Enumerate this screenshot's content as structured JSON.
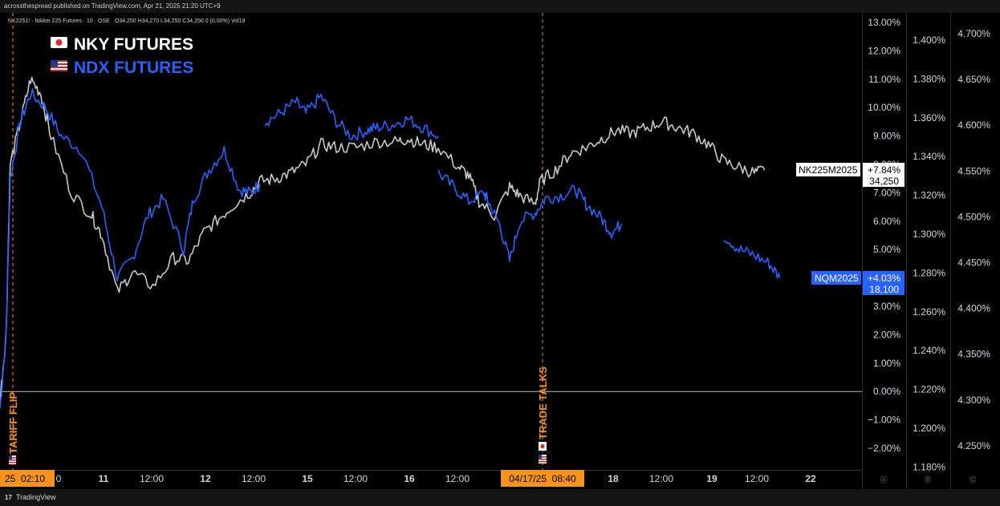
{
  "header": {
    "published": "acrossthespread published on TradingView.com, Apr 21, 2025 21:20 UTC+9",
    "symbol_info": "NK2251! · Nikkei 225 Futures · 10 · OSE",
    "ohlc": "O34,250  H34,270  L34,250  C34,250  0 (0.00%)  Vol19"
  },
  "legend": [
    {
      "flag": "japan-flag-icon",
      "label": "NKY  FUTURES",
      "color": "#ffffff"
    },
    {
      "flag": "us-flag-icon",
      "label": "NDX  FUTURES",
      "color": "#2962ff"
    }
  ],
  "events": [
    {
      "label": "TARIFF FLIP",
      "flag": "us-flag-icon",
      "time_label": "25  02:10"
    },
    {
      "label": "TRADE TALKS",
      "flag": "japan-flag-icon",
      "time_label": "04/17/25  08:40"
    }
  ],
  "footer": {
    "brand": "TradingView"
  },
  "colors": {
    "nky": "#c8c8c8",
    "ndx": "#2962ff",
    "event_line": "#f7931a",
    "time_badge": "#f7931a",
    "ndx_tag": "#2962ff",
    "nky_tag": "#ffffff"
  },
  "chart_data": {
    "type": "line",
    "x_ticks": [
      "11",
      "12:00",
      "12",
      "12:00",
      "15",
      "12:00",
      "16",
      "12:00",
      "17",
      "12:00",
      "18",
      "12:00",
      "19",
      "12:00",
      "22"
    ],
    "x_tick_partial": "0",
    "y_axes": [
      {
        "id": "A",
        "labels": [
          "13.00%",
          "12.00%",
          "11.00%",
          "10.00%",
          "9.00%",
          "8.00%",
          "7.00%",
          "6.00%",
          "5.00%",
          "4.00%",
          "3.00%",
          "2.00%",
          "1.00%",
          "0.00%",
          "−1.00%",
          "−2.00%"
        ],
        "ylim": [
          -2.6,
          13.5
        ]
      },
      {
        "id": "B",
        "labels": [
          "1.400%",
          "1.380%",
          "1.360%",
          "1.340%",
          "1.320%",
          "1.300%",
          "1.280%",
          "1.260%",
          "1.240%",
          "1.220%",
          "1.200%",
          "1.180%"
        ]
      },
      {
        "id": "C",
        "labels": [
          "4.700%",
          "4.650%",
          "4.600%",
          "4.550%",
          "4.500%",
          "4.450%",
          "4.400%",
          "4.350%",
          "4.300%",
          "4.250%"
        ]
      }
    ],
    "grid": false,
    "series": [
      {
        "name": "NK225M2025",
        "pct": "+7.84%",
        "price": "34,250",
        "segments": [
          {
            "x": [
              0,
              0.06,
              0.1,
              0.2,
              0.3,
              0.4,
              0.5,
              0.7,
              0.9,
              1.0,
              1.15,
              1.3,
              1.5,
              1.7,
              1.85,
              2.0,
              2.15,
              2.3,
              2.45,
              2.55,
              2.7,
              2.85,
              3.0,
              3.15,
              3.3,
              3.5,
              3.7,
              3.9,
              4.0,
              4.15,
              4.3,
              4.5,
              4.6,
              4.7,
              4.85,
              5.0,
              5.1,
              5.25,
              5.3,
              5.45,
              5.6,
              5.75,
              5.9,
              6.05,
              6.2,
              6.35,
              6.5,
              6.65,
              6.8,
              6.95,
              7.1,
              7.25,
              7.4,
              7.5
            ],
            "y": [
              -0.3,
              2.0,
              8.0,
              9.5,
              11.0,
              10.5,
              9.0,
              7.0,
              6.2,
              5.5,
              3.5,
              4.2,
              3.7,
              4.7,
              4.6,
              5.6,
              6.1,
              6.6,
              7.0,
              7.4,
              7.5,
              7.7,
              8.0,
              8.7,
              8.6,
              8.6,
              8.8,
              8.8,
              8.9,
              8.7,
              8.6,
              7.9,
              7.6,
              6.7,
              6.2,
              7.2,
              6.9,
              6.6,
              7.4,
              7.8,
              8.4,
              8.6,
              8.9,
              9.2,
              9.1,
              9.3,
              9.5,
              9.3,
              9.1,
              8.7,
              8.1,
              7.9,
              7.7,
              7.8
            ]
          }
        ]
      },
      {
        "name": "NQM2025",
        "pct": "+4.03%",
        "price": "18,100",
        "segments": [
          {
            "x": [
              0,
              0.06,
              0.1,
              0.2,
              0.3,
              0.45,
              0.6,
              0.8,
              1.0,
              1.15,
              1.3,
              1.45,
              1.6,
              1.8,
              1.9,
              2.05,
              2.2,
              2.35,
              2.45,
              2.55
            ],
            "y": [
              -0.6,
              2.0,
              7.5,
              9.5,
              10.5,
              10.0,
              9.0,
              8.5,
              6.5,
              4.0,
              4.7,
              6.2,
              6.8,
              5.0,
              6.8,
              7.8,
              8.5,
              7.1,
              7.0,
              7.3
            ]
          },
          {
            "x": [
              2.6,
              2.75,
              2.9,
              3.0,
              3.15,
              3.3,
              3.45,
              3.6,
              3.7,
              3.85,
              4.0,
              4.15,
              4.3
            ],
            "y": [
              9.5,
              9.8,
              10.2,
              9.8,
              10.4,
              9.5,
              9.0,
              9.2,
              9.3,
              9.4,
              9.6,
              9.3,
              9.0
            ]
          },
          {
            "x": [
              4.3,
              4.45,
              4.6,
              4.75,
              4.8,
              4.9,
              5.0,
              5.1,
              5.25,
              5.35,
              5.5,
              5.65,
              5.75,
              5.9,
              6.0,
              6.1
            ],
            "y": [
              7.7,
              7.2,
              6.7,
              7.0,
              6.6,
              5.9,
              4.6,
              6.0,
              6.3,
              6.8,
              6.9,
              7.1,
              6.6,
              6.1,
              5.6,
              5.9
            ]
          },
          {
            "x": [
              7.1,
              7.25,
              7.4,
              7.55,
              7.65
            ],
            "y": [
              5.5,
              5.0,
              4.8,
              4.5,
              4.0
            ]
          }
        ]
      }
    ],
    "zero_line": 0.0
  }
}
